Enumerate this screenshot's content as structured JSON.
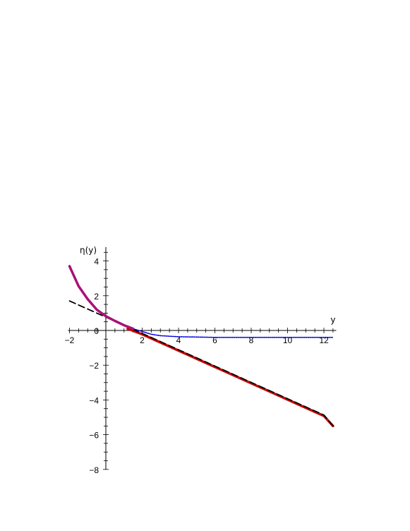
{
  "chart_data": {
    "type": "line",
    "title": "",
    "xlabel": "y",
    "ylabel": "η(y)",
    "xlim": [
      -2,
      12.6
    ],
    "ylim": [
      -8,
      4.8
    ],
    "grid": false,
    "legend": "none",
    "x_ticks": [
      -2,
      2,
      4,
      6,
      8,
      10,
      12
    ],
    "x_tick_labels": [
      "−2",
      "2",
      "4",
      "6",
      "8",
      "10",
      "12"
    ],
    "y_ticks": [
      -8,
      -6,
      -4,
      -2,
      0,
      2,
      4
    ],
    "y_tick_labels": [
      "−8",
      "−6",
      "−4",
      "−2",
      "0",
      "2",
      "4"
    ],
    "series": [
      {
        "color": "#cc0000",
        "style": "solid-thick",
        "x": [
          1.2,
          2,
          3,
          4,
          5,
          6,
          7,
          8,
          9,
          10,
          11,
          12,
          12.5
        ],
        "y": [
          0.1,
          -0.22,
          -0.69,
          -1.16,
          -1.63,
          -2.1,
          -2.57,
          -3.04,
          -3.51,
          -3.98,
          -4.45,
          -4.92,
          -5.5
        ]
      },
      {
        "color": "#000000",
        "style": "dashed",
        "x": [
          -2,
          0,
          2,
          4,
          6,
          8,
          10,
          12,
          12.5
        ],
        "y": [
          1.7,
          0.77,
          -0.17,
          -1.11,
          -2.05,
          -2.99,
          -3.93,
          -4.87,
          -5.5
        ]
      },
      {
        "color": "#0000dd",
        "style": "dotted",
        "x": [
          -2,
          -1.5,
          -1,
          -0.5,
          0,
          0.5,
          1,
          1.5,
          2,
          2.5,
          3,
          4,
          5,
          6,
          8,
          10,
          12,
          12.5
        ],
        "y": [
          3.7,
          2.55,
          1.8,
          1.2,
          0.82,
          0.55,
          0.3,
          0.1,
          -0.06,
          -0.22,
          -0.3,
          -0.36,
          -0.38,
          -0.4,
          -0.4,
          -0.4,
          -0.4,
          -0.4
        ]
      },
      {
        "color": "#aa1077",
        "style": "solid-thick",
        "x": [
          -2,
          -1.5,
          -1,
          -0.5,
          0,
          0.5,
          1,
          1.5
        ],
        "y": [
          3.7,
          2.55,
          1.8,
          1.2,
          0.82,
          0.55,
          0.3,
          0.1
        ]
      }
    ]
  }
}
